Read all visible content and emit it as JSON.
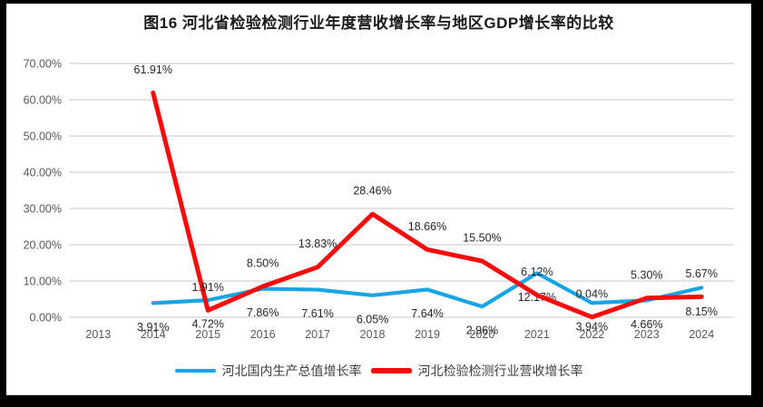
{
  "frame": {
    "border_color": "#000000",
    "canvas_background": "#ffffff"
  },
  "chart_data": {
    "type": "line",
    "title": "图16 河北省检验检测行业年度营收增长率与地区GDP增长率的比较",
    "categories": [
      "2013",
      "2014",
      "2015",
      "2016",
      "2017",
      "2018",
      "2019",
      "2020",
      "2021",
      "2022",
      "2023",
      "2024"
    ],
    "series": [
      {
        "name": "河北国内生产总值增长率",
        "color": "#17A5E5",
        "label_position": "below",
        "values": [
          null,
          3.91,
          4.72,
          7.86,
          7.61,
          6.05,
          7.64,
          2.96,
          12.17,
          3.94,
          4.66,
          8.15
        ]
      },
      {
        "name": "河北检验检测行业营收增长率",
        "color": "#F80B0B",
        "label_position": "above",
        "values": [
          null,
          61.91,
          1.91,
          8.5,
          13.83,
          28.46,
          18.66,
          15.5,
          6.12,
          0.04,
          5.3,
          5.67
        ]
      }
    ],
    "xlabel": "",
    "ylabel": "",
    "ylim": [
      0,
      70
    ],
    "ytick_step": 10,
    "ytick_labels": [
      "0.00%",
      "10.00%",
      "20.00%",
      "30.00%",
      "40.00%",
      "50.00%",
      "60.00%",
      "70.00%"
    ],
    "value_format": "0.00%",
    "grid": true,
    "legend_position": "bottom"
  },
  "colors": {
    "gridline": "#E4E4E4",
    "axis_text": "#595959",
    "data_label": "#262626",
    "title_text": "#1A1A1A",
    "legend_text": "#3F3F3F"
  }
}
